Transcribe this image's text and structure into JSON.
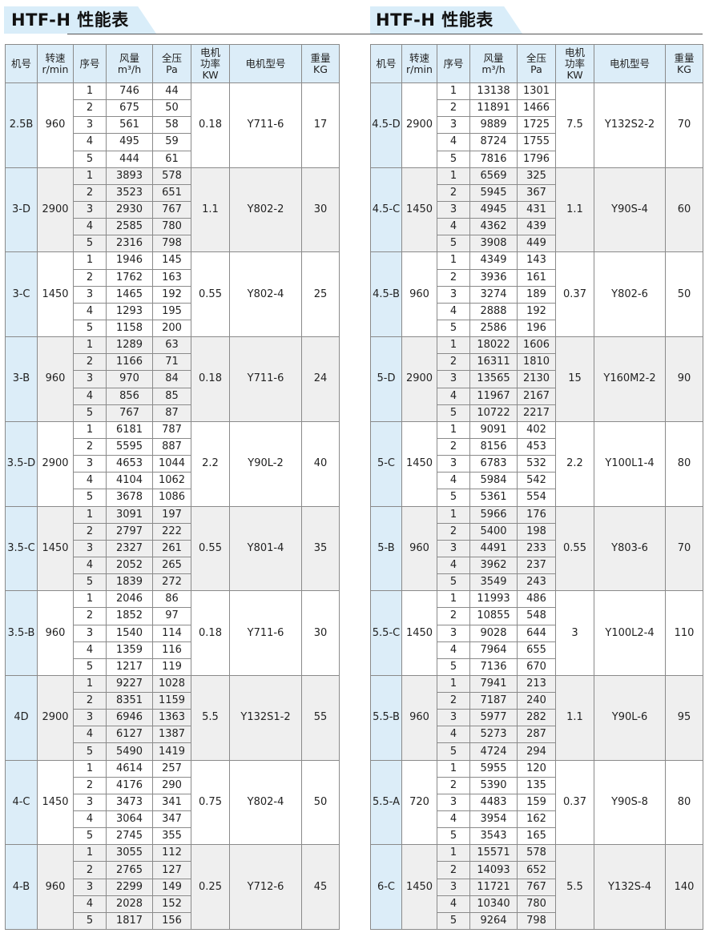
{
  "headers": [
    "机号",
    "转速\nr/min",
    "序号",
    "风量\nm³/h",
    "全压\nPa",
    "电机\n功率\nKW",
    "电机型号",
    "重量\nKG"
  ],
  "tables": [
    {
      "title": "HTF-H 性能表",
      "groups": [
        {
          "model": "2.5B",
          "speed": "960",
          "power": "0.18",
          "motor": "Y711-6",
          "weight": "17",
          "rows": [
            [
              "1",
              "746",
              "44"
            ],
            [
              "2",
              "675",
              "50"
            ],
            [
              "3",
              "561",
              "58"
            ],
            [
              "4",
              "495",
              "59"
            ],
            [
              "5",
              "444",
              "61"
            ]
          ]
        },
        {
          "model": "3-D",
          "speed": "2900",
          "power": "1.1",
          "motor": "Y802-2",
          "weight": "30",
          "rows": [
            [
              "1",
              "3893",
              "578"
            ],
            [
              "2",
              "3523",
              "651"
            ],
            [
              "3",
              "2930",
              "767"
            ],
            [
              "4",
              "2585",
              "780"
            ],
            [
              "5",
              "2316",
              "798"
            ]
          ]
        },
        {
          "model": "3-C",
          "speed": "1450",
          "power": "0.55",
          "motor": "Y802-4",
          "weight": "25",
          "rows": [
            [
              "1",
              "1946",
              "145"
            ],
            [
              "2",
              "1762",
              "163"
            ],
            [
              "3",
              "1465",
              "192"
            ],
            [
              "4",
              "1293",
              "195"
            ],
            [
              "5",
              "1158",
              "200"
            ]
          ]
        },
        {
          "model": "3-B",
          "speed": "960",
          "power": "0.18",
          "motor": "Y711-6",
          "weight": "24",
          "rows": [
            [
              "1",
              "1289",
              "63"
            ],
            [
              "2",
              "1166",
              "71"
            ],
            [
              "3",
              "970",
              "84"
            ],
            [
              "4",
              "856",
              "85"
            ],
            [
              "5",
              "767",
              "87"
            ]
          ]
        },
        {
          "model": "3.5-D",
          "speed": "2900",
          "power": "2.2",
          "motor": "Y90L-2",
          "weight": "40",
          "rows": [
            [
              "1",
              "6181",
              "787"
            ],
            [
              "2",
              "5595",
              "887"
            ],
            [
              "3",
              "4653",
              "1044"
            ],
            [
              "4",
              "4104",
              "1062"
            ],
            [
              "5",
              "3678",
              "1086"
            ]
          ]
        },
        {
          "model": "3.5-C",
          "speed": "1450",
          "power": "0.55",
          "motor": "Y801-4",
          "weight": "35",
          "rows": [
            [
              "1",
              "3091",
              "197"
            ],
            [
              "2",
              "2797",
              "222"
            ],
            [
              "3",
              "2327",
              "261"
            ],
            [
              "4",
              "2052",
              "265"
            ],
            [
              "5",
              "1839",
              "272"
            ]
          ]
        },
        {
          "model": "3.5-B",
          "speed": "960",
          "power": "0.18",
          "motor": "Y711-6",
          "weight": "30",
          "rows": [
            [
              "1",
              "2046",
              "86"
            ],
            [
              "2",
              "1852",
              "97"
            ],
            [
              "3",
              "1540",
              "114"
            ],
            [
              "4",
              "1359",
              "116"
            ],
            [
              "5",
              "1217",
              "119"
            ]
          ]
        },
        {
          "model": "4D",
          "speed": "2900",
          "power": "5.5",
          "motor": "Y132S1-2",
          "weight": "55",
          "rows": [
            [
              "1",
              "9227",
              "1028"
            ],
            [
              "2",
              "8351",
              "1159"
            ],
            [
              "3",
              "6946",
              "1363"
            ],
            [
              "4",
              "6127",
              "1387"
            ],
            [
              "5",
              "5490",
              "1419"
            ]
          ]
        },
        {
          "model": "4-C",
          "speed": "1450",
          "power": "0.75",
          "motor": "Y802-4",
          "weight": "50",
          "rows": [
            [
              "1",
              "4614",
              "257"
            ],
            [
              "2",
              "4176",
              "290"
            ],
            [
              "3",
              "3473",
              "341"
            ],
            [
              "4",
              "3064",
              "347"
            ],
            [
              "5",
              "2745",
              "355"
            ]
          ]
        },
        {
          "model": "4-B",
          "speed": "960",
          "power": "0.25",
          "motor": "Y712-6",
          "weight": "45",
          "rows": [
            [
              "1",
              "3055",
              "112"
            ],
            [
              "2",
              "2765",
              "127"
            ],
            [
              "3",
              "2299",
              "149"
            ],
            [
              "4",
              "2028",
              "152"
            ],
            [
              "5",
              "1817",
              "156"
            ]
          ]
        }
      ]
    },
    {
      "title": "HTF-H 性能表",
      "groups": [
        {
          "model": "4.5-D",
          "speed": "2900",
          "power": "7.5",
          "motor": "Y132S2-2",
          "weight": "70",
          "rows": [
            [
              "1",
              "13138",
              "1301"
            ],
            [
              "2",
              "11891",
              "1466"
            ],
            [
              "3",
              "9889",
              "1725"
            ],
            [
              "4",
              "8724",
              "1755"
            ],
            [
              "5",
              "7816",
              "1796"
            ]
          ]
        },
        {
          "model": "4.5-C",
          "speed": "1450",
          "power": "1.1",
          "motor": "Y90S-4",
          "weight": "60",
          "rows": [
            [
              "1",
              "6569",
              "325"
            ],
            [
              "2",
              "5945",
              "367"
            ],
            [
              "3",
              "4945",
              "431"
            ],
            [
              "4",
              "4362",
              "439"
            ],
            [
              "5",
              "3908",
              "449"
            ]
          ]
        },
        {
          "model": "4.5-B",
          "speed": "960",
          "power": "0.37",
          "motor": "Y802-6",
          "weight": "50",
          "rows": [
            [
              "1",
              "4349",
              "143"
            ],
            [
              "2",
              "3936",
              "161"
            ],
            [
              "3",
              "3274",
              "189"
            ],
            [
              "4",
              "2888",
              "192"
            ],
            [
              "5",
              "2586",
              "196"
            ]
          ]
        },
        {
          "model": "5-D",
          "speed": "2900",
          "power": "15",
          "motor": "Y160M2-2",
          "weight": "90",
          "rows": [
            [
              "1",
              "18022",
              "1606"
            ],
            [
              "2",
              "16311",
              "1810"
            ],
            [
              "3",
              "13565",
              "2130"
            ],
            [
              "4",
              "11967",
              "2167"
            ],
            [
              "5",
              "10722",
              "2217"
            ]
          ]
        },
        {
          "model": "5-C",
          "speed": "1450",
          "power": "2.2",
          "motor": "Y100L1-4",
          "weight": "80",
          "rows": [
            [
              "1",
              "9091",
              "402"
            ],
            [
              "2",
              "8156",
              "453"
            ],
            [
              "3",
              "6783",
              "532"
            ],
            [
              "4",
              "5984",
              "542"
            ],
            [
              "5",
              "5361",
              "554"
            ]
          ]
        },
        {
          "model": "5-B",
          "speed": "960",
          "power": "0.55",
          "motor": "Y803-6",
          "weight": "70",
          "rows": [
            [
              "1",
              "5966",
              "176"
            ],
            [
              "2",
              "5400",
              "198"
            ],
            [
              "3",
              "4491",
              "233"
            ],
            [
              "4",
              "3962",
              "237"
            ],
            [
              "5",
              "3549",
              "243"
            ]
          ]
        },
        {
          "model": "5.5-C",
          "speed": "1450",
          "power": "3",
          "motor": "Y100L2-4",
          "weight": "110",
          "rows": [
            [
              "1",
              "11993",
              "486"
            ],
            [
              "2",
              "10855",
              "548"
            ],
            [
              "3",
              "9028",
              "644"
            ],
            [
              "4",
              "7964",
              "655"
            ],
            [
              "5",
              "7136",
              "670"
            ]
          ]
        },
        {
          "model": "5.5-B",
          "speed": "960",
          "power": "1.1",
          "motor": "Y90L-6",
          "weight": "95",
          "rows": [
            [
              "1",
              "7941",
              "213"
            ],
            [
              "2",
              "7187",
              "240"
            ],
            [
              "3",
              "5977",
              "282"
            ],
            [
              "4",
              "5273",
              "287"
            ],
            [
              "5",
              "4724",
              "294"
            ]
          ]
        },
        {
          "model": "5.5-A",
          "speed": "720",
          "power": "0.37",
          "motor": "Y90S-8",
          "weight": "80",
          "rows": [
            [
              "1",
              "5955",
              "120"
            ],
            [
              "2",
              "5390",
              "135"
            ],
            [
              "3",
              "4483",
              "159"
            ],
            [
              "4",
              "3954",
              "162"
            ],
            [
              "5",
              "3543",
              "165"
            ]
          ]
        },
        {
          "model": "6-C",
          "speed": "1450",
          "power": "5.5",
          "motor": "Y132S-4",
          "weight": "140",
          "rows": [
            [
              "1",
              "15571",
              "578"
            ],
            [
              "2",
              "14093",
              "652"
            ],
            [
              "3",
              "11721",
              "767"
            ],
            [
              "4",
              "10340",
              "780"
            ],
            [
              "5",
              "9264",
              "798"
            ]
          ]
        }
      ]
    }
  ],
  "colors": {
    "header_bg": "#dcedf8",
    "alt_group_bg": "#efefef",
    "border": "#8a8a8a"
  }
}
